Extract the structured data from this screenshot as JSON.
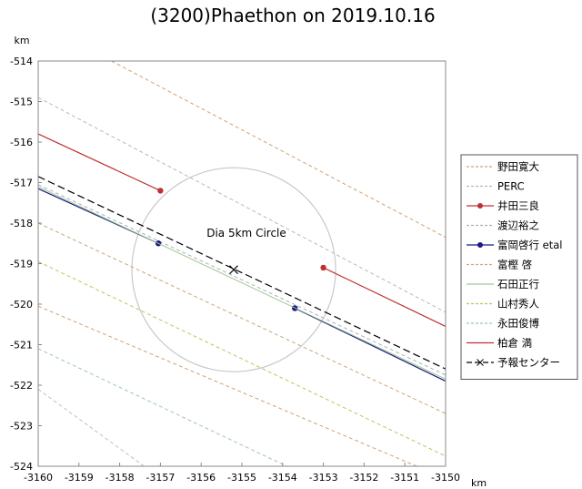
{
  "chart_data": {
    "type": "line",
    "title": "(3200)Phaethon on 2019.10.16",
    "xlabel": "km",
    "ylabel": "km",
    "xlim": [
      -3160,
      -3150
    ],
    "ylim": [
      -524,
      -514
    ],
    "xticks": [
      -3160,
      -3159,
      -3158,
      -3157,
      -3156,
      -3155,
      -3154,
      -3153,
      -3152,
      -3151,
      -3150
    ],
    "yticks": [
      -514,
      -515,
      -516,
      -517,
      -518,
      -519,
      -520,
      -521,
      -522,
      -523,
      -524
    ],
    "grid": false,
    "legend_position": "right",
    "annotation": "Dia 5km Circle",
    "circle": {
      "center": [
        -3155.2,
        -519.15
      ],
      "diameter_km": 5,
      "color": "#c8c8c8"
    },
    "series": [
      {
        "name": "野田寛大",
        "color": "#d4a070",
        "dash": "4,3",
        "x": [
          -3158.2,
          -3150
        ],
        "y": [
          -514,
          -518.35
        ]
      },
      {
        "name": "PERC",
        "color": "#b0b8c8",
        "dash": "4,3",
        "x": [
          -3160,
          -3150
        ],
        "y": [
          -514.9,
          -520.2
        ]
      },
      {
        "name": "井田三良",
        "color": "#c03030",
        "dash": "",
        "marker": "dot",
        "segments": [
          {
            "x": [
              -3160,
              -3157
            ],
            "y": [
              -515.8,
              -517.2
            ]
          },
          {
            "x": [
              -3153,
              -3150
            ],
            "y": [
              -519.1,
              -520.55
            ]
          }
        ]
      },
      {
        "name": "渡辺裕之",
        "color": "#a8b0c0",
        "dash": "4,3",
        "x": [
          -3160,
          -3150
        ],
        "y": [
          -517.05,
          -521.75
        ]
      },
      {
        "name": "富岡啓行 etal",
        "color": "#1a1a80",
        "dash": "",
        "marker": "dot",
        "segments": [
          {
            "x": [
              -3160,
              -3157.05
            ],
            "y": [
              -517.15,
              -518.5
            ]
          },
          {
            "x": [
              -3153.7,
              -3150
            ],
            "y": [
              -520.1,
              -521.9
            ]
          }
        ]
      },
      {
        "name": "富樫 啓",
        "color": "#c8a878",
        "dash": "4,3",
        "x": [
          -3160,
          -3150
        ],
        "y": [
          -518,
          -522.7
        ]
      },
      {
        "name": "石田正行",
        "color": "#a0c890",
        "dash": "",
        "x": [
          -3160,
          -3150
        ],
        "y": [
          -517.1,
          -521.85
        ]
      },
      {
        "name": "山村秀人",
        "color": "#c8c060",
        "dash": "4,3",
        "x": [
          -3160,
          -3150
        ],
        "y": [
          -518.95,
          -523.75
        ]
      },
      {
        "name": "永田俊博",
        "color": "#a0c8a8",
        "dash": "4,3",
        "x": [
          -3160,
          -3153.9
        ],
        "y": [
          -521.1,
          -524
        ]
      },
      {
        "name": "柏倉 満",
        "color": "#c03030",
        "dash": "",
        "x": [],
        "y": []
      },
      {
        "name": "予報センター",
        "color": "#000000",
        "dash": "8,4",
        "marker": "x",
        "center_marker": [
          -3155.2,
          -519.15
        ],
        "x": [
          -3160,
          -3150
        ],
        "y": [
          -516.85,
          -521.6
        ]
      }
    ],
    "extra_lines": [
      {
        "color": "#d4a070",
        "dash": "4,3",
        "x": [
          -3160,
          -3150
        ],
        "y": [
          -520.05,
          -524.3
        ]
      },
      {
        "color": "#c0c0c8",
        "dash": "4,3",
        "x": [
          -3160,
          -3157.4
        ],
        "y": [
          -522.1,
          -524
        ]
      }
    ]
  }
}
